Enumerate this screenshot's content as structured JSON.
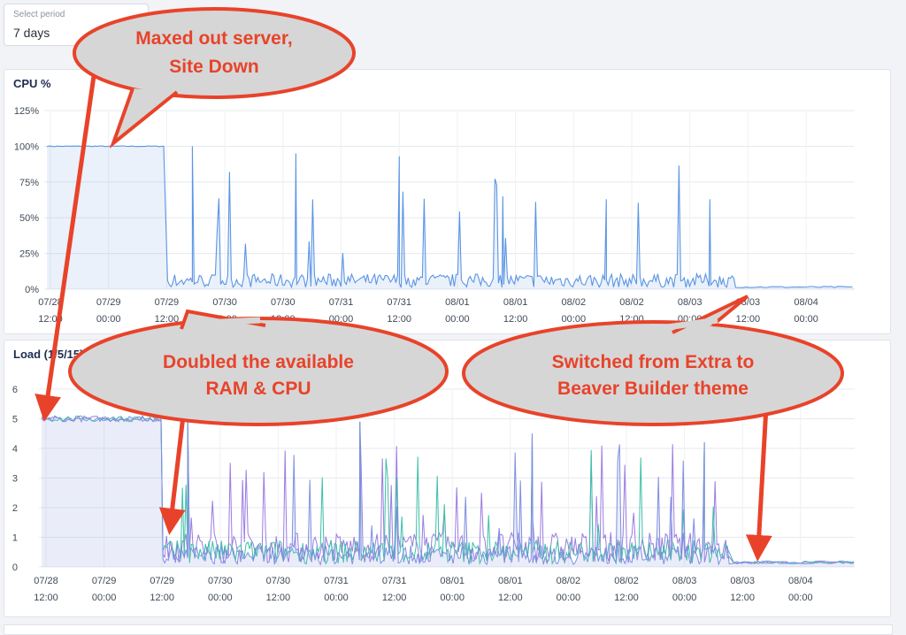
{
  "period_select": {
    "label": "Select period",
    "value": "7 days"
  },
  "charts": [
    {
      "title": "CPU %"
    },
    {
      "title": "Load (1/5/15)"
    }
  ],
  "chart_data": [
    {
      "type": "area",
      "title": "CPU %",
      "x_ticks": [
        "07/28 12:00",
        "07/29 00:00",
        "07/29 12:00",
        "07/30 00:00",
        "07/30 12:00",
        "07/31 00:00",
        "07/31 12:00",
        "08/01 00:00",
        "08/01 12:00",
        "08/02 00:00",
        "08/02 12:00",
        "08/03 00:00",
        "08/03 12:00",
        "08/04 00:00"
      ],
      "y_ticks": [
        "0%",
        "25%",
        "50%",
        "75%",
        "100%",
        "125%"
      ],
      "ylim": [
        0,
        125
      ],
      "grid": true,
      "color": "#5b95e3",
      "phases": [
        {
          "from": "07/28 12:00",
          "to": "07/29 12:00",
          "approx_value": 100
        },
        {
          "from": "07/29 12:00",
          "to": "08/03 12:00",
          "approx_value": 6,
          "peaks": [
            100,
            95,
            93,
            65,
            63,
            63
          ]
        },
        {
          "from": "08/03 12:00",
          "to": "08/04 12:00",
          "approx_value": 1
        }
      ]
    },
    {
      "type": "line",
      "title": "Load (1/5/15)",
      "x_ticks": [
        "07/28 12:00",
        "07/29 00:00",
        "07/29 12:00",
        "07/30 00:00",
        "07/30 12:00",
        "07/31 00:00",
        "07/31 12:00",
        "08/01 00:00",
        "08/01 12:00",
        "08/02 00:00",
        "08/02 12:00",
        "08/03 00:00",
        "08/03 12:00",
        "08/04 00:00"
      ],
      "y_ticks": [
        "0",
        "1",
        "2",
        "3",
        "4",
        "5",
        "6"
      ],
      "ylim": [
        0,
        6
      ],
      "grid": true,
      "series_colors": [
        "#9b7be0",
        "#3cbfa8",
        "#7e8fe0"
      ],
      "phases": [
        {
          "from": "07/28 12:00",
          "to": "07/29 12:00",
          "approx_value": 5.0
        },
        {
          "from": "07/29 12:00",
          "to": "08/03 12:00",
          "approx_value": 0.5,
          "peaks": [
            5.0,
            4.9,
            4.5,
            4.2
          ]
        },
        {
          "from": "08/03 12:00",
          "to": "08/04 12:00",
          "approx_value": 0.1
        }
      ]
    }
  ],
  "callouts": [
    {
      "lines": [
        "Maxed out server,",
        "Site Down"
      ]
    },
    {
      "lines": [
        "Doubled the available",
        "RAM & CPU"
      ]
    },
    {
      "lines": [
        "Switched from Extra to",
        "Beaver Builder theme"
      ]
    }
  ]
}
